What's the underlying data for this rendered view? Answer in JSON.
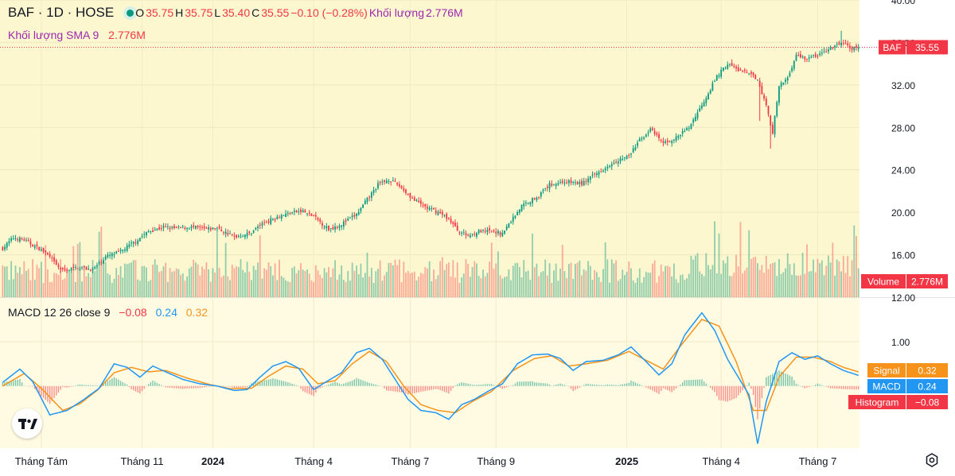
{
  "header": {
    "symbol": "BAF · 1D · HOSE",
    "o_label": "O",
    "o": "35.75",
    "h_label": "H",
    "h": "35.75",
    "l_label": "L",
    "l": "35.40",
    "c_label": "C",
    "c": "35.55",
    "change": "−0.10 (−0.28%)",
    "volume_label": "Khối lượng",
    "volume": "2.776M",
    "sma_label": "Khối lượng SMA 9",
    "sma_value": "2.776M"
  },
  "macd_legend": {
    "label": "MACD 12 26 close 9",
    "hist": "−0.08",
    "macd": "0.24",
    "signal": "0.32"
  },
  "badges": {
    "price_name": "BAF",
    "price_value": "35.55",
    "volume_name": "Volume",
    "volume_value": "2.776M",
    "signal_name": "Signal",
    "signal_value": "0.32",
    "macd_name": "MACD",
    "macd_value": "0.24",
    "hist_name": "Histogram",
    "hist_value": "−0.08"
  },
  "colors": {
    "up": "#089981",
    "down": "#f23645",
    "macd": "#2196f3",
    "signal": "#f7931a",
    "bg_price": "#fdf7cf",
    "bg_macd": "#fffbe2"
  },
  "chart_data": {
    "type": "candlestick",
    "price_axis": {
      "range": [
        12,
        40
      ],
      "ticks": [
        "12.00",
        "16.00",
        "20.00",
        "24.00",
        "28.00",
        "32.00",
        "36.00",
        "40.00"
      ],
      "tick_values": [
        12,
        16,
        20,
        24,
        28,
        32,
        36,
        40
      ]
    },
    "macd_axis": {
      "range": [
        -1.4,
        2.0
      ],
      "ticks": [
        "1.00"
      ],
      "tick_values": [
        1.0
      ]
    },
    "x_labels": [
      {
        "label": "Tháng Tám",
        "bold": false
      },
      {
        "label": "Tháng 11",
        "bold": false
      },
      {
        "label": "2024",
        "bold": true
      },
      {
        "label": "Tháng 4",
        "bold": false
      },
      {
        "label": "Tháng 7",
        "bold": false
      },
      {
        "label": "Tháng 9",
        "bold": false
      },
      {
        "label": "2025",
        "bold": true
      },
      {
        "label": "Tháng 4",
        "bold": false
      },
      {
        "label": "Tháng 7",
        "bold": false
      }
    ],
    "x_label_bars": [
      18,
      65,
      98,
      145,
      190,
      230,
      291,
      335,
      380
    ],
    "bars_total": 400,
    "last_close": 35.55,
    "price_path": [
      [
        0,
        16.6
      ],
      [
        5,
        17.6
      ],
      [
        10,
        17.4
      ],
      [
        15,
        16.8
      ],
      [
        20,
        16.2
      ],
      [
        25,
        15.0
      ],
      [
        28,
        14.5
      ],
      [
        35,
        14.8
      ],
      [
        42,
        14.6
      ],
      [
        48,
        15.8
      ],
      [
        55,
        16.3
      ],
      [
        62,
        17.3
      ],
      [
        68,
        18.2
      ],
      [
        75,
        18.6
      ],
      [
        80,
        18.5
      ],
      [
        88,
        18.6
      ],
      [
        95,
        18.4
      ],
      [
        100,
        18.5
      ],
      [
        108,
        17.7
      ],
      [
        115,
        18.0
      ],
      [
        120,
        18.8
      ],
      [
        128,
        19.6
      ],
      [
        135,
        20.0
      ],
      [
        140,
        20.1
      ],
      [
        145,
        19.6
      ],
      [
        152,
        18.4
      ],
      [
        158,
        18.9
      ],
      [
        165,
        19.8
      ],
      [
        170,
        21.2
      ],
      [
        175,
        22.6
      ],
      [
        180,
        23.1
      ],
      [
        185,
        22.5
      ],
      [
        192,
        21.1
      ],
      [
        198,
        20.4
      ],
      [
        203,
        20.0
      ],
      [
        208,
        19.4
      ],
      [
        212,
        18.3
      ],
      [
        217,
        17.8
      ],
      [
        222,
        18.2
      ],
      [
        228,
        18.2
      ],
      [
        233,
        18.0
      ],
      [
        237,
        19.2
      ],
      [
        242,
        20.6
      ],
      [
        250,
        21.6
      ],
      [
        255,
        22.6
      ],
      [
        262,
        22.9
      ],
      [
        270,
        22.7
      ],
      [
        278,
        23.8
      ],
      [
        285,
        24.8
      ],
      [
        292,
        25.3
      ],
      [
        297,
        26.8
      ],
      [
        302,
        27.8
      ],
      [
        308,
        26.5
      ],
      [
        314,
        27.0
      ],
      [
        320,
        28.0
      ],
      [
        327,
        30.5
      ],
      [
        333,
        32.8
      ],
      [
        338,
        34.0
      ],
      [
        343,
        33.4
      ],
      [
        348,
        33.0
      ],
      [
        352,
        32.6
      ],
      [
        356,
        30.0
      ],
      [
        359,
        27.5
      ],
      [
        362,
        31.8
      ],
      [
        366,
        32.7
      ],
      [
        370,
        34.8
      ],
      [
        375,
        34.5
      ],
      [
        380,
        34.8
      ],
      [
        386,
        35.4
      ],
      [
        391,
        36.0
      ],
      [
        396,
        35.4
      ],
      [
        399,
        35.55
      ]
    ],
    "spikes": [
      {
        "bar": 358,
        "low": 26.0
      },
      {
        "bar": 353,
        "low": 28.6
      },
      {
        "bar": 391,
        "high": 37.1
      }
    ],
    "macd_path": [
      [
        0,
        0.08
      ],
      [
        8,
        0.38
      ],
      [
        14,
        0.1
      ],
      [
        22,
        -0.65
      ],
      [
        30,
        -0.55
      ],
      [
        38,
        -0.3
      ],
      [
        45,
        -0.05
      ],
      [
        52,
        0.5
      ],
      [
        58,
        0.42
      ],
      [
        64,
        0.2
      ],
      [
        70,
        0.45
      ],
      [
        76,
        0.32
      ],
      [
        84,
        0.15
      ],
      [
        92,
        0.05
      ],
      [
        100,
        0.0
      ],
      [
        108,
        -0.1
      ],
      [
        114,
        -0.08
      ],
      [
        120,
        0.2
      ],
      [
        126,
        0.45
      ],
      [
        132,
        0.55
      ],
      [
        138,
        0.4
      ],
      [
        145,
        -0.08
      ],
      [
        151,
        0.1
      ],
      [
        158,
        0.3
      ],
      [
        165,
        0.75
      ],
      [
        171,
        0.85
      ],
      [
        177,
        0.6
      ],
      [
        183,
        0.15
      ],
      [
        189,
        -0.3
      ],
      [
        195,
        -0.55
      ],
      [
        202,
        -0.6
      ],
      [
        208,
        -0.75
      ],
      [
        214,
        -0.42
      ],
      [
        220,
        -0.3
      ],
      [
        227,
        -0.1
      ],
      [
        233,
        0.05
      ],
      [
        240,
        0.5
      ],
      [
        247,
        0.7
      ],
      [
        254,
        0.72
      ],
      [
        260,
        0.62
      ],
      [
        266,
        0.35
      ],
      [
        272,
        0.55
      ],
      [
        280,
        0.58
      ],
      [
        287,
        0.7
      ],
      [
        293,
        0.88
      ],
      [
        300,
        0.55
      ],
      [
        306,
        0.25
      ],
      [
        312,
        0.5
      ],
      [
        318,
        1.15
      ],
      [
        326,
        1.65
      ],
      [
        332,
        1.25
      ],
      [
        338,
        0.6
      ],
      [
        343,
        0.2
      ],
      [
        348,
        -0.2
      ],
      [
        352,
        -1.3
      ],
      [
        356,
        -0.35
      ],
      [
        362,
        0.55
      ],
      [
        368,
        0.75
      ],
      [
        374,
        0.6
      ],
      [
        380,
        0.68
      ],
      [
        386,
        0.5
      ],
      [
        392,
        0.35
      ],
      [
        399,
        0.24
      ]
    ],
    "signal_path": [
      [
        0,
        0.0
      ],
      [
        10,
        0.28
      ],
      [
        18,
        -0.05
      ],
      [
        28,
        -0.55
      ],
      [
        36,
        -0.4
      ],
      [
        44,
        -0.1
      ],
      [
        52,
        0.3
      ],
      [
        60,
        0.42
      ],
      [
        68,
        0.32
      ],
      [
        76,
        0.35
      ],
      [
        86,
        0.18
      ],
      [
        96,
        0.04
      ],
      [
        106,
        -0.06
      ],
      [
        116,
        -0.05
      ],
      [
        124,
        0.22
      ],
      [
        132,
        0.45
      ],
      [
        140,
        0.38
      ],
      [
        147,
        0.05
      ],
      [
        155,
        0.12
      ],
      [
        163,
        0.5
      ],
      [
        171,
        0.78
      ],
      [
        179,
        0.55
      ],
      [
        187,
        0.0
      ],
      [
        195,
        -0.42
      ],
      [
        203,
        -0.55
      ],
      [
        211,
        -0.6
      ],
      [
        219,
        -0.35
      ],
      [
        228,
        -0.12
      ],
      [
        238,
        0.35
      ],
      [
        248,
        0.62
      ],
      [
        256,
        0.68
      ],
      [
        264,
        0.45
      ],
      [
        272,
        0.5
      ],
      [
        282,
        0.58
      ],
      [
        292,
        0.78
      ],
      [
        300,
        0.58
      ],
      [
        308,
        0.38
      ],
      [
        316,
        0.9
      ],
      [
        326,
        1.5
      ],
      [
        334,
        1.35
      ],
      [
        342,
        0.55
      ],
      [
        350,
        -0.55
      ],
      [
        356,
        -0.55
      ],
      [
        362,
        0.2
      ],
      [
        370,
        0.65
      ],
      [
        378,
        0.65
      ],
      [
        386,
        0.55
      ],
      [
        392,
        0.42
      ],
      [
        399,
        0.32
      ]
    ]
  }
}
